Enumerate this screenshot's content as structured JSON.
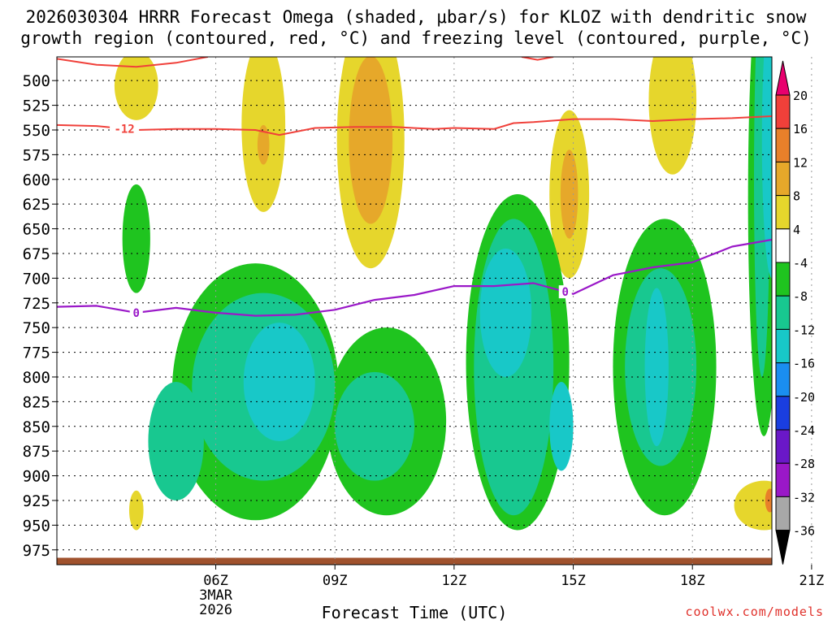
{
  "chart_data": {
    "type": "heatmap",
    "title_line1": "2026030304 HRRR Forecast Omega (shaded, μbar/s) for KLOZ with dendritic snow",
    "title_line2": "growth region (contoured, red, °C) and freezing level (contoured, purple, °C)",
    "xlabel": "Forecast Time (UTC)",
    "credit": "coolwx.com/models",
    "x_ticks": [
      {
        "hour": 6,
        "label": "06Z",
        "sub": [
          "3MAR",
          "2026"
        ]
      },
      {
        "hour": 9,
        "label": "09Z"
      },
      {
        "hour": 12,
        "label": "12Z"
      },
      {
        "hour": 15,
        "label": "15Z"
      },
      {
        "hour": 18,
        "label": "18Z"
      },
      {
        "hour": 21,
        "label": "21Z"
      }
    ],
    "xlim": [
      2.0,
      20.0
    ],
    "ylim": [
      476,
      990
    ],
    "y_ticks": [
      500,
      525,
      550,
      575,
      600,
      625,
      650,
      675,
      700,
      725,
      750,
      775,
      800,
      825,
      850,
      875,
      900,
      925,
      950,
      975
    ],
    "ground_level_hpa": 983,
    "colorbar": {
      "labels": [
        "20",
        "16",
        "12",
        "8",
        "4",
        "-4",
        "-8",
        "-12",
        "-16",
        "-20",
        "-24",
        "-28",
        "-32",
        "-36"
      ],
      "colors": [
        "#e8006e",
        "#f0403a",
        "#e8802a",
        "#e6a82a",
        "#e6d62c",
        "#ffffff",
        "#1fc41f",
        "#18c890",
        "#18c8c8",
        "#1a8ef0",
        "#1a3ee0",
        "#6a18c8",
        "#9a18c8",
        "#a8a8a8",
        "#000000"
      ]
    },
    "colors": {
      "red_contour": "#f0403a",
      "purple_contour": "#9a18c8",
      "ground": "#a0522d"
    },
    "dgz_contour": {
      "label": "-12",
      "label_hour": 3.7,
      "points": [
        [
          2.0,
          545
        ],
        [
          3.0,
          546
        ],
        [
          4.0,
          550
        ],
        [
          5.0,
          549
        ],
        [
          6.0,
          549
        ],
        [
          7.0,
          550
        ],
        [
          7.6,
          555
        ],
        [
          8.5,
          548
        ],
        [
          9.5,
          547
        ],
        [
          10.5,
          547
        ],
        [
          11.5,
          549
        ],
        [
          12.0,
          548
        ],
        [
          13.0,
          549
        ],
        [
          13.5,
          543
        ],
        [
          14.0,
          542
        ],
        [
          15.0,
          539
        ],
        [
          16.0,
          539
        ],
        [
          17.0,
          541
        ],
        [
          18.0,
          539
        ],
        [
          19.0,
          538
        ],
        [
          20.0,
          536
        ]
      ],
      "upper_points": [
        [
          2.0,
          478
        ],
        [
          3.0,
          484
        ],
        [
          4.0,
          486
        ],
        [
          5.0,
          482
        ],
        [
          5.8,
          476
        ]
      ],
      "upper_points_2": [
        [
          13.7,
          476
        ],
        [
          14.1,
          479
        ],
        [
          14.5,
          476
        ]
      ]
    },
    "freezing_level": {
      "label": "0",
      "label_hours": [
        4.0,
        14.8
      ],
      "points": [
        [
          2.0,
          729
        ],
        [
          3.0,
          728
        ],
        [
          4.0,
          735
        ],
        [
          5.0,
          730
        ],
        [
          6.0,
          735
        ],
        [
          7.0,
          738
        ],
        [
          8.0,
          737
        ],
        [
          9.0,
          732
        ],
        [
          10.0,
          722
        ],
        [
          11.0,
          717
        ],
        [
          12.0,
          708
        ],
        [
          13.0,
          708
        ],
        [
          14.0,
          705
        ],
        [
          15.0,
          716
        ],
        [
          16.0,
          697
        ],
        [
          17.0,
          689
        ],
        [
          18.0,
          684
        ],
        [
          19.0,
          668
        ],
        [
          20.0,
          661
        ]
      ]
    },
    "omega_positive": [
      {
        "value": 4,
        "hour": 4.0,
        "p": 505,
        "rx": 0.55,
        "ry": 35
      },
      {
        "value": 4,
        "hour": 3.9,
        "p": 495,
        "rx": 0.25,
        "ry": 20
      },
      {
        "value": 4,
        "hour": 7.2,
        "p": 545,
        "rx": 0.55,
        "ry": 88
      },
      {
        "value": 8,
        "hour": 7.2,
        "p": 565,
        "rx": 0.15,
        "ry": 20
      },
      {
        "value": 4,
        "hour": 9.9,
        "p": 560,
        "rx": 0.85,
        "ry": 130
      },
      {
        "value": 8,
        "hour": 9.9,
        "p": 560,
        "rx": 0.55,
        "ry": 85
      },
      {
        "value": 4,
        "hour": 14.9,
        "p": 615,
        "rx": 0.5,
        "ry": 85
      },
      {
        "value": 8,
        "hour": 14.9,
        "p": 615,
        "rx": 0.22,
        "ry": 45
      },
      {
        "value": 4,
        "hour": 17.5,
        "p": 520,
        "rx": 0.6,
        "ry": 75
      },
      {
        "value": 4,
        "hour": 4.0,
        "p": 935,
        "rx": 0.18,
        "ry": 20
      },
      {
        "value": 4,
        "hour": 19.8,
        "p": 930,
        "rx": 0.75,
        "ry": 25
      },
      {
        "value": 12,
        "hour": 19.95,
        "p": 925,
        "rx": 0.12,
        "ry": 12
      }
    ],
    "omega_negative": [
      {
        "value": -4,
        "hour": 4.0,
        "p": 660,
        "rx": 0.35,
        "ry": 55
      },
      {
        "value": -4,
        "hour": 7.0,
        "p": 815,
        "rx": 2.1,
        "ry": 130
      },
      {
        "value": -4,
        "hour": 10.3,
        "p": 845,
        "rx": 1.5,
        "ry": 95
      },
      {
        "value": -8,
        "hour": 7.2,
        "p": 810,
        "rx": 1.8,
        "ry": 95
      },
      {
        "value": -8,
        "hour": 5.0,
        "p": 865,
        "rx": 0.7,
        "ry": 60
      },
      {
        "value": -8,
        "hour": 10.0,
        "p": 850,
        "rx": 1.0,
        "ry": 55
      },
      {
        "value": -12,
        "hour": 7.6,
        "p": 805,
        "rx": 0.9,
        "ry": 60
      },
      {
        "value": -4,
        "hour": 13.6,
        "p": 785,
        "rx": 1.3,
        "ry": 170
      },
      {
        "value": -8,
        "hour": 13.5,
        "p": 790,
        "rx": 1.0,
        "ry": 150
      },
      {
        "value": -12,
        "hour": 13.3,
        "p": 735,
        "rx": 0.65,
        "ry": 65
      },
      {
        "value": -12,
        "hour": 14.7,
        "p": 850,
        "rx": 0.3,
        "ry": 45
      },
      {
        "value": -4,
        "hour": 17.3,
        "p": 790,
        "rx": 1.3,
        "ry": 150
      },
      {
        "value": -8,
        "hour": 17.2,
        "p": 790,
        "rx": 0.9,
        "ry": 100
      },
      {
        "value": -12,
        "hour": 17.1,
        "p": 790,
        "rx": 0.3,
        "ry": 80
      },
      {
        "value": -4,
        "hour": 19.8,
        "p": 620,
        "rx": 0.4,
        "ry": 240
      },
      {
        "value": -8,
        "hour": 19.75,
        "p": 600,
        "rx": 0.2,
        "ry": 200
      },
      {
        "value": -12,
        "hour": 20.0,
        "p": 560,
        "rx": 0.25,
        "ry": 140
      }
    ]
  }
}
